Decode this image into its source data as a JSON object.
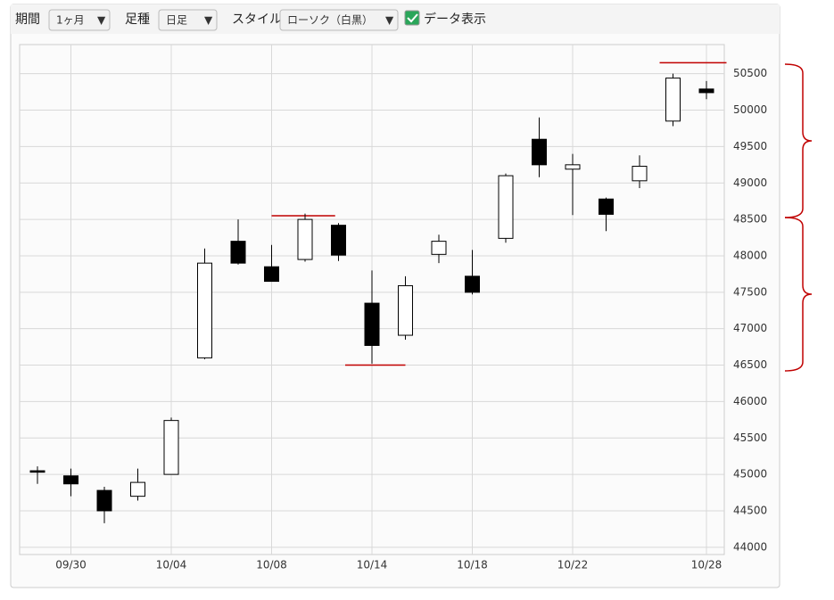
{
  "toolbar": {
    "period_label": "期間",
    "period_value": "1ヶ月",
    "bar_label": "足種",
    "bar_value": "日足",
    "style_label": "スタイル",
    "style_value": "ローソク（白黒）",
    "show_data_label": "データ表示",
    "show_data_checked": true
  },
  "chart_data": {
    "type": "candlestick",
    "categories": [
      null,
      "09/30",
      null,
      null,
      "10/04",
      null,
      null,
      "10/08",
      null,
      null,
      "10/14",
      null,
      null,
      "10/18",
      null,
      null,
      "10/22",
      null,
      null,
      null,
      "10/28"
    ],
    "open": [
      45050,
      44980,
      44780,
      44700,
      45000,
      46600,
      48200,
      47850,
      47950,
      48420,
      47350,
      46910,
      48020,
      47720,
      48240,
      49600,
      49190,
      48780,
      49030,
      49850,
      50290
    ],
    "high": [
      45110,
      45080,
      44830,
      45080,
      45780,
      48100,
      48500,
      48150,
      48580,
      48450,
      47800,
      47720,
      48290,
      48080,
      49130,
      49900,
      49400,
      48800,
      49380,
      50500,
      50400
    ],
    "low": [
      44870,
      44700,
      44330,
      44640,
      45000,
      46580,
      47880,
      47680,
      47920,
      47930,
      46520,
      46850,
      47900,
      47470,
      48180,
      49080,
      48560,
      48340,
      48930,
      49780,
      50150
    ],
    "close": [
      45030,
      44870,
      44500,
      44890,
      45740,
      47900,
      47900,
      47650,
      48500,
      48010,
      46770,
      47590,
      48200,
      47500,
      49100,
      49250,
      49250,
      48570,
      49230,
      50440,
      50240
    ],
    "up_color": "#ffffff",
    "down_color": "#000000",
    "reference_lines": [
      50650,
      48550,
      46500
    ],
    "reference_color": "#c00000",
    "ylim": [
      43900,
      50900
    ],
    "yticks": [
      44000,
      44500,
      45000,
      45500,
      46000,
      46500,
      47000,
      47500,
      48000,
      48500,
      49000,
      49500,
      50000,
      50500
    ],
    "grid": true
  }
}
